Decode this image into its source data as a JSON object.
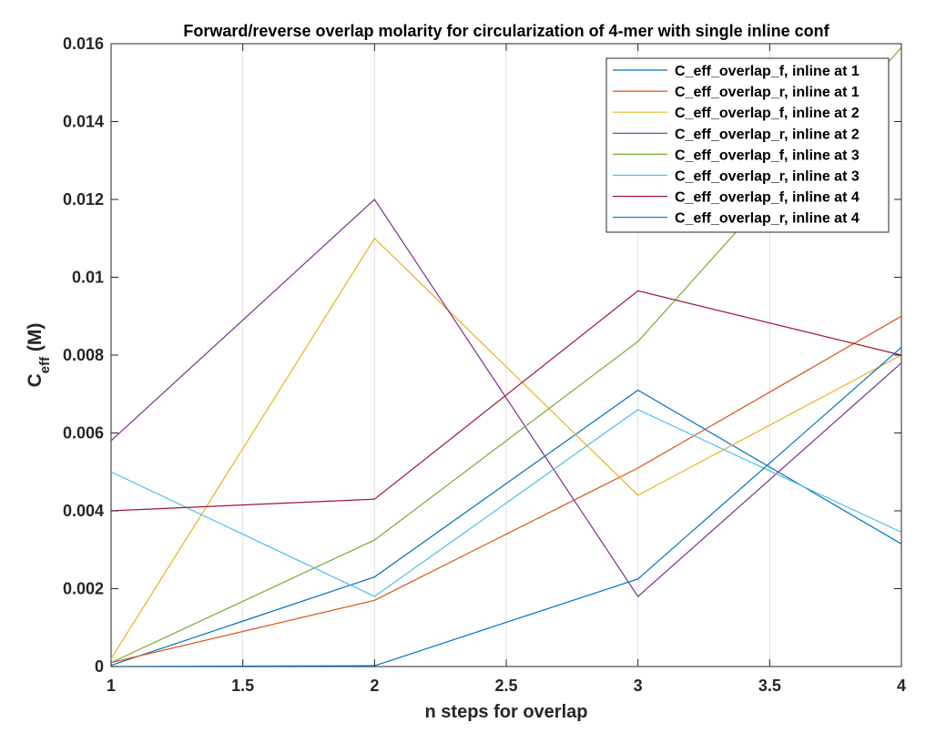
{
  "chart_data": {
    "type": "line",
    "title": "Forward/reverse overlap molarity for circularization of 4-mer with single inline conf",
    "xlabel": "n steps for overlap",
    "ylabel": {
      "main": "C",
      "subscript": "eff",
      "unit": " (M)"
    },
    "xlim": [
      1,
      4
    ],
    "ylim": [
      0,
      0.016
    ],
    "x_ticks": [
      1,
      1.5,
      2,
      2.5,
      3,
      3.5,
      4
    ],
    "x_tick_labels": [
      "1",
      "1.5",
      "2",
      "2.5",
      "3",
      "3.5",
      "4"
    ],
    "y_ticks": [
      0,
      0.002,
      0.004,
      0.006,
      0.008,
      0.01,
      0.012,
      0.014,
      0.016
    ],
    "y_tick_labels": [
      "0",
      "0.002",
      "0.004",
      "0.006",
      "0.008",
      "0.01",
      "0.012",
      "0.014",
      "0.016"
    ],
    "grid": {
      "x": true,
      "y": false
    },
    "legend_position": "top-right",
    "x": [
      1,
      2,
      3,
      4
    ],
    "series": [
      {
        "name": "C_eff_overlap_f, inline at 1",
        "color": "#0072BD",
        "values": [
          3e-05,
          0.0023,
          0.0071,
          0.00315
        ]
      },
      {
        "name": "C_eff_overlap_r, inline at 1",
        "color": "#D95319",
        "values": [
          0.0001,
          0.0017,
          0.0051,
          0.009
        ]
      },
      {
        "name": "C_eff_overlap_f, inline at 2",
        "color": "#EDB120",
        "values": [
          0.0002,
          0.011,
          0.0044,
          0.008
        ]
      },
      {
        "name": "C_eff_overlap_r, inline at 2",
        "color": "#7E2F8E",
        "values": [
          0.0058,
          0.012,
          0.0018,
          0.0078
        ]
      },
      {
        "name": "C_eff_overlap_f, inline at 3",
        "color": "#77AC30",
        "values": [
          0.0001,
          0.00325,
          0.00835,
          0.0159
        ]
      },
      {
        "name": "C_eff_overlap_r, inline at 3",
        "color": "#4DBEEE",
        "values": [
          0.005,
          0.0018,
          0.0066,
          0.00345
        ]
      },
      {
        "name": "C_eff_overlap_f, inline at 4",
        "color": "#A2142F",
        "values": [
          0.004,
          0.0043,
          0.00965,
          0.008
        ]
      },
      {
        "name": "C_eff_overlap_r, inline at 4",
        "color": "#0072BD",
        "values": [
          0.0,
          2e-05,
          0.00225,
          0.0082
        ]
      }
    ]
  }
}
